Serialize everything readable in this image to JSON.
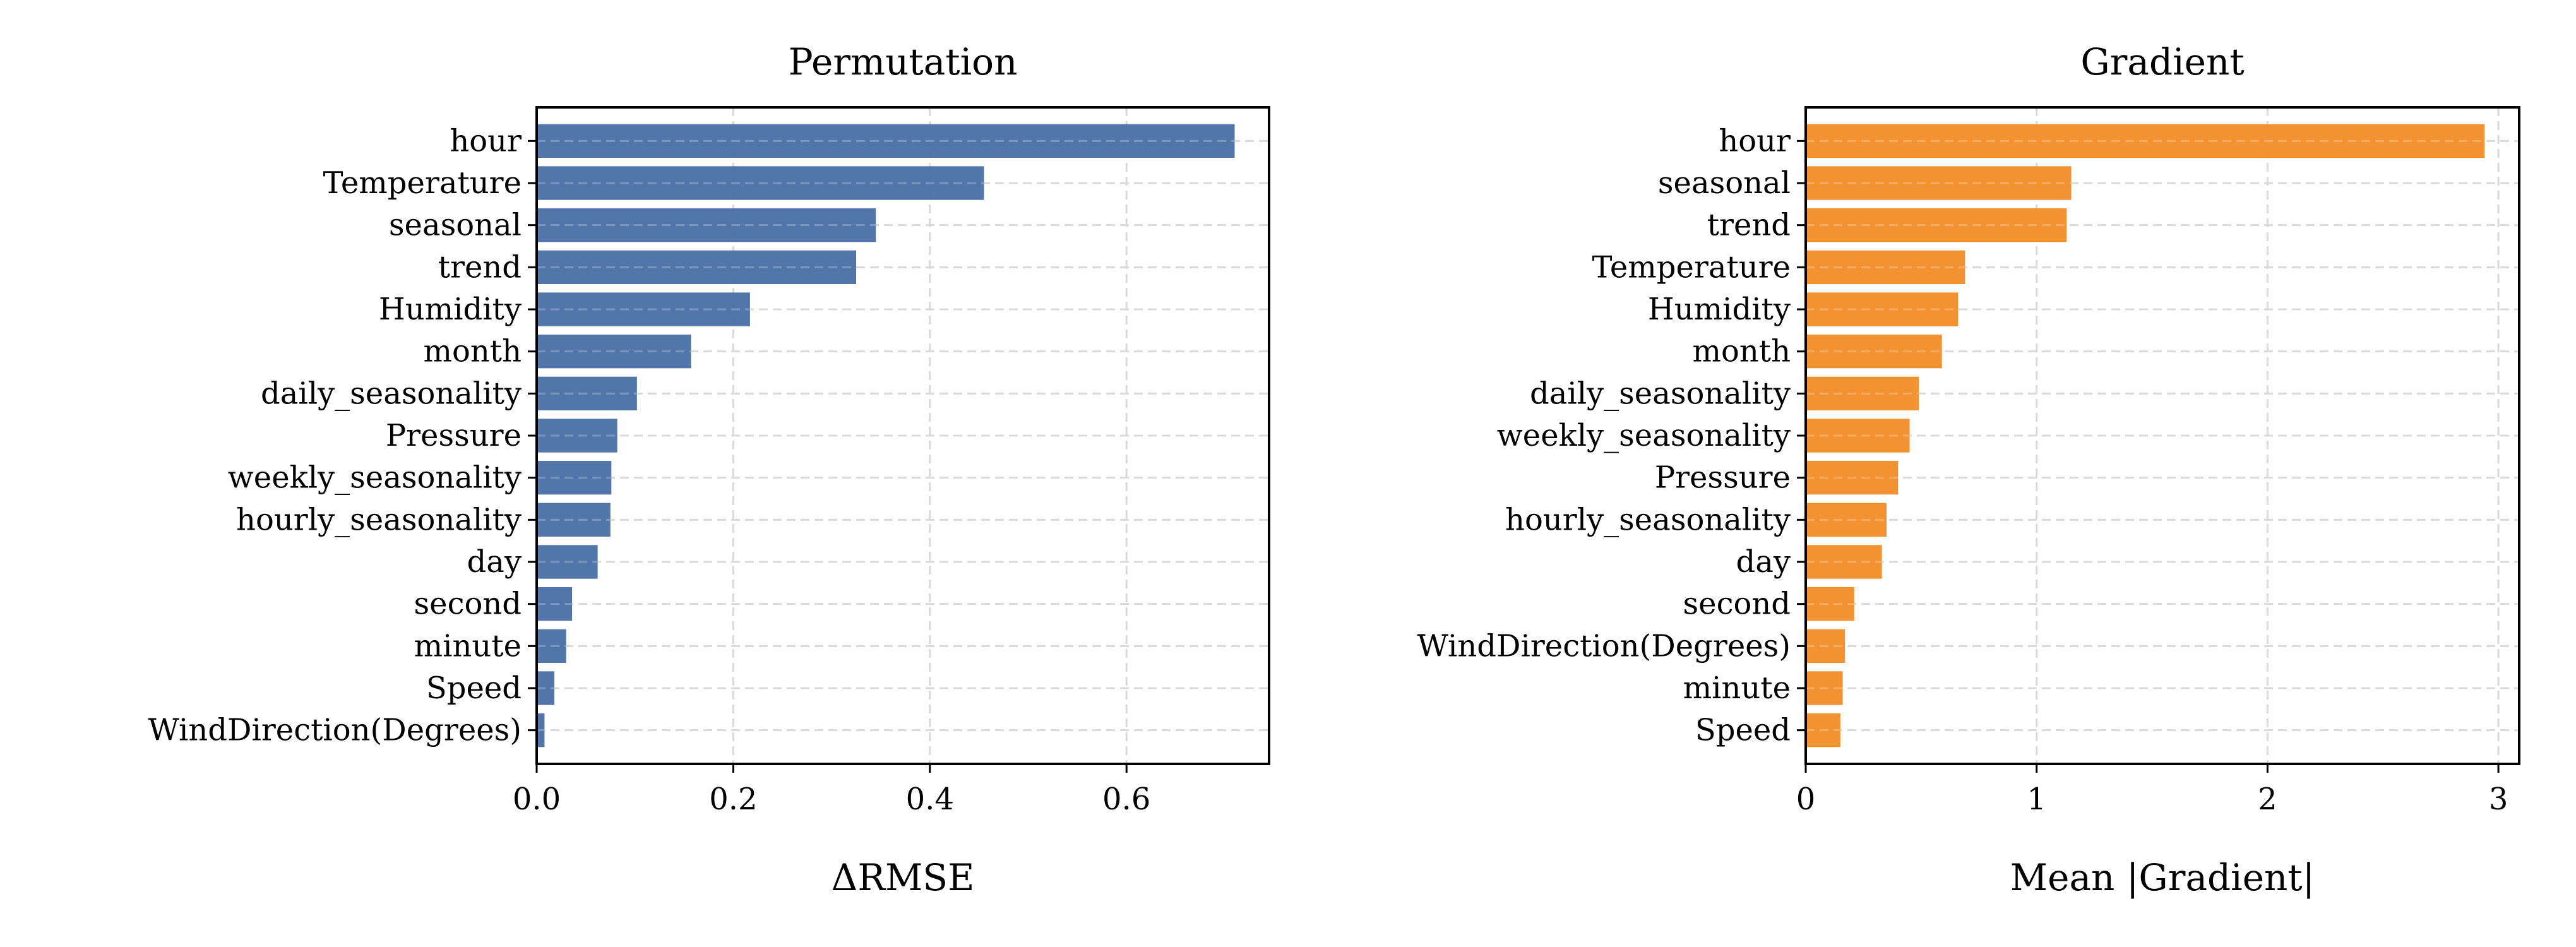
{
  "chart_data": [
    {
      "type": "bar",
      "orientation": "horizontal",
      "title": "Permutation",
      "xlabel": "ΔRMSE",
      "ylabel": "",
      "xlim": [
        0,
        0.745
      ],
      "xticks": [
        0.0,
        0.2,
        0.4,
        0.6
      ],
      "xtick_labels": [
        "0.0",
        "0.2",
        "0.4",
        "0.6"
      ],
      "grid": true,
      "color": "#4c72a6",
      "categories": [
        "hour",
        "Temperature",
        "seasonal",
        "trend",
        "Humidity",
        "month",
        "daily_seasonality",
        "Pressure",
        "weekly_seasonality",
        "hourly_seasonality",
        "day",
        "second",
        "minute",
        "Speed",
        "WindDirection(Degrees)"
      ],
      "values": [
        0.71,
        0.455,
        0.345,
        0.325,
        0.217,
        0.157,
        0.102,
        0.082,
        0.076,
        0.075,
        0.062,
        0.036,
        0.03,
        0.018,
        0.008
      ]
    },
    {
      "type": "bar",
      "orientation": "horizontal",
      "title": "Gradient",
      "xlabel": "Mean |Gradient|",
      "ylabel": "",
      "xlim": [
        0,
        3.09
      ],
      "xticks": [
        0,
        1,
        2,
        3
      ],
      "xtick_labels": [
        "0",
        "1",
        "2",
        "3"
      ],
      "grid": true,
      "color": "#f28e2b",
      "categories": [
        "hour",
        "seasonal",
        "trend",
        "Temperature",
        "Humidity",
        "month",
        "daily_seasonality",
        "weekly_seasonality",
        "Pressure",
        "hourly_seasonality",
        "day",
        "second",
        "WindDirection(Degrees)",
        "minute",
        "Speed"
      ],
      "values": [
        2.94,
        1.15,
        1.13,
        0.69,
        0.66,
        0.59,
        0.49,
        0.45,
        0.4,
        0.35,
        0.33,
        0.21,
        0.17,
        0.16,
        0.15
      ]
    }
  ]
}
